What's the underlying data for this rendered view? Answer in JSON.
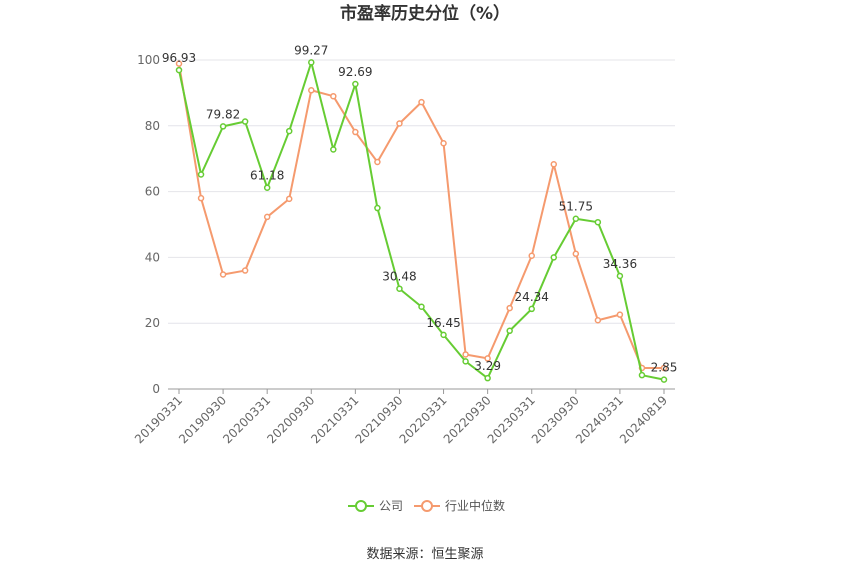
{
  "chart_data": {
    "type": "line",
    "title": "市盈率历史分位（%）",
    "source": "数据来源：恒生聚源",
    "ylim": [
      0,
      100
    ],
    "yticks": [
      0,
      20,
      40,
      60,
      80,
      100
    ],
    "grid": true,
    "legend_position": "bottom-center",
    "x_tick_labels": [
      "20190331",
      "20190930",
      "20200331",
      "20200930",
      "20210331",
      "20210930",
      "20220331",
      "20220930",
      "20230331",
      "20230930",
      "20240331",
      "20240819"
    ],
    "x_tick_indices": [
      0,
      2,
      4,
      6,
      8,
      10,
      12,
      14,
      16,
      18,
      20,
      22
    ],
    "x_count": 23,
    "series": [
      {
        "name": "公司",
        "color": "#66cc33",
        "values": [
          96.93,
          65.2,
          79.82,
          81.3,
          61.18,
          78.4,
          99.27,
          72.8,
          92.69,
          55.0,
          30.48,
          25.0,
          16.45,
          8.4,
          3.29,
          17.7,
          24.34,
          40.0,
          51.75,
          50.7,
          34.36,
          4.2,
          2.85
        ],
        "labels": [
          "96.93",
          "",
          "79.82",
          "",
          "61.18",
          "",
          "99.27",
          "",
          "92.69",
          "",
          "30.48",
          "",
          "16.45",
          "",
          "3.29",
          "",
          "24.34",
          "",
          "51.75",
          "",
          "34.36",
          "",
          "2.85"
        ]
      },
      {
        "name": "行业中位数",
        "color": "#f59a6e",
        "values": [
          98.9,
          58.0,
          34.8,
          36.0,
          52.3,
          57.8,
          90.8,
          89.0,
          78.1,
          69.0,
          80.7,
          87.2,
          74.7,
          10.5,
          9.3,
          24.6,
          40.5,
          68.3,
          41.1,
          20.9,
          22.6,
          6.4,
          6.4
        ]
      }
    ]
  }
}
